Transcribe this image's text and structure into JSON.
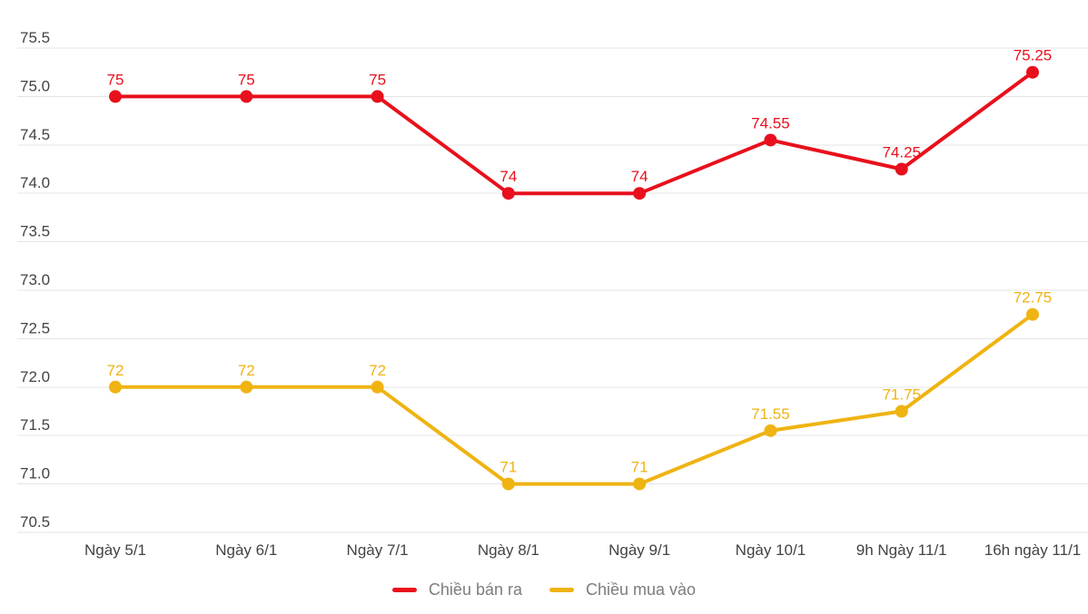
{
  "chart_data": {
    "type": "line",
    "title": "",
    "categories": [
      "Ngày 5/1",
      "Ngày 6/1",
      "Ngày 7/1",
      "Ngày 8/1",
      "Ngày 9/1",
      "Ngày 10/1",
      "9h Ngày 11/1",
      "16h ngày 11/1"
    ],
    "series": [
      {
        "name": "Chiều bán ra",
        "color": "#e8101c",
        "values": [
          75,
          75,
          75,
          74,
          74,
          74.55,
          74.25,
          75.25
        ]
      },
      {
        "name": "Chiều mua vào",
        "color": "#efb312",
        "values": [
          72,
          72,
          72,
          71,
          71,
          71.55,
          71.75,
          72.75
        ]
      }
    ],
    "y_axis": {
      "min": 70.5,
      "max": 75.5,
      "step": 0.5,
      "tick_labels": [
        "75.5",
        "75.0",
        "74.5",
        "74.0",
        "73.5",
        "73.0",
        "72.5",
        "72.0",
        "71.5",
        "71.0",
        "70.5"
      ]
    },
    "grid": "horizontal",
    "data_labels": true,
    "legend_position": "bottom",
    "colors": {
      "gridline": "#e4e4e4",
      "axis_text": "#434343",
      "legend_text": "#7d7d7d",
      "background": "#ffffff"
    }
  }
}
